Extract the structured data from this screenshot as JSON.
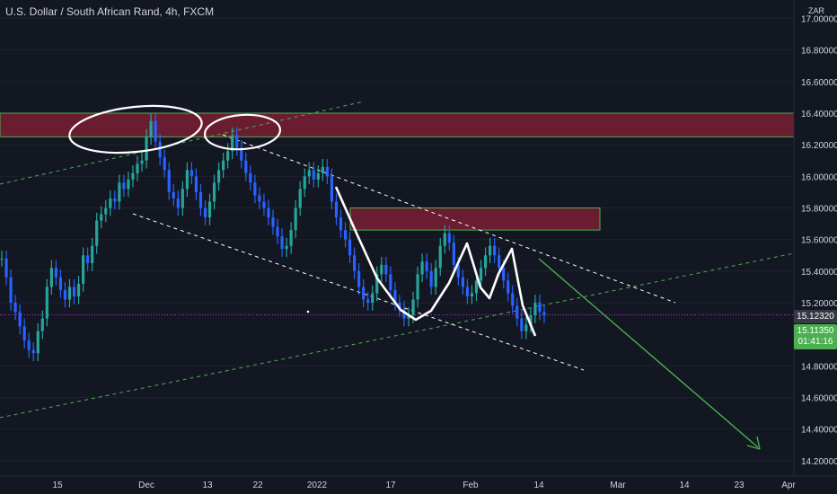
{
  "header": {
    "title": "U.S. Dollar / South African Rand, 4h, FXCM",
    "currency": "ZAR"
  },
  "price_tags": {
    "last_price": "15.12320",
    "green_price": "15.11350",
    "countdown": "01:41:16"
  },
  "chart_data": {
    "type": "line",
    "title": "U.S. Dollar / South African Rand, 4h, FXCM",
    "ylim": [
      14.15,
      17.1
    ],
    "y_ticks": [
      "17.00000",
      "16.80000",
      "16.60000",
      "16.40000",
      "16.20000",
      "16.00000",
      "15.80000",
      "15.60000",
      "15.40000",
      "15.20000",
      "14.80000",
      "14.60000",
      "14.40000",
      "14.20000"
    ],
    "x_ticks": [
      "15",
      "Dec",
      "13",
      "22",
      "2022",
      "17",
      "Feb",
      "14",
      "Mar",
      "14",
      "23",
      "Apr"
    ],
    "series": [
      {
        "values": [
          15.48,
          15.36,
          15.2,
          15.14,
          15.05,
          14.96,
          14.9,
          14.88,
          15.02,
          15.1,
          15.3,
          15.42,
          15.36,
          15.28,
          15.22,
          15.3,
          15.24,
          15.32,
          15.5,
          15.45,
          15.56,
          15.72,
          15.76,
          15.8,
          15.86,
          15.84,
          15.96,
          15.92,
          15.98,
          16.02,
          16.08,
          16.1,
          16.25,
          16.35,
          16.22,
          16.12,
          16.04,
          15.9,
          15.86,
          15.8,
          15.92,
          16.04,
          16.0,
          15.9,
          15.8,
          15.74,
          15.84,
          15.96,
          16.04,
          16.1,
          16.16,
          16.26,
          16.18,
          16.1,
          16.02,
          15.96,
          15.88,
          15.84,
          15.8,
          15.74,
          15.68,
          15.62,
          15.54,
          15.56,
          15.66,
          15.8,
          15.92,
          16.0,
          16.04,
          15.98,
          16.02,
          16.06,
          16.0,
          15.84,
          15.74,
          15.66,
          15.6,
          15.5,
          15.4,
          15.3,
          15.22,
          15.2,
          15.26,
          15.38,
          15.44,
          15.38,
          15.28,
          15.2,
          15.16,
          15.1,
          15.12,
          15.22,
          15.38,
          15.46,
          15.4,
          15.3,
          15.42,
          15.56,
          15.64,
          15.58,
          15.44,
          15.36,
          15.3,
          15.24,
          15.26,
          15.34,
          15.42,
          15.5,
          15.56,
          15.5,
          15.42,
          15.34,
          15.26,
          15.18,
          15.1,
          15.02,
          15.06,
          15.12,
          15.2,
          15.14,
          15.12
        ]
      }
    ],
    "zones": [
      {
        "y_top": 16.4,
        "y_bottom": 16.25
      },
      {
        "y_top": 15.8,
        "y_bottom": 15.66
      }
    ],
    "grid": true
  }
}
